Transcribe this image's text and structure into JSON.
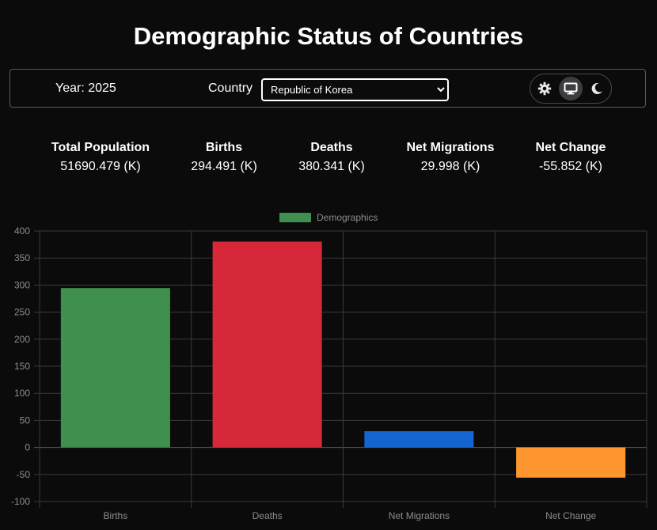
{
  "title": "Demographic Status of Countries",
  "controls": {
    "year_label": "Year: 2025",
    "country_label": "Country",
    "country_selected": "Republic of Korea",
    "theme_options": [
      "light-icon",
      "desktop-icon",
      "moon-icon"
    ],
    "theme_active": "desktop-icon"
  },
  "stats": [
    {
      "label": "Total Population",
      "value": "51690.479 (K)"
    },
    {
      "label": "Births",
      "value": "294.491 (K)"
    },
    {
      "label": "Deaths",
      "value": "380.341 (K)"
    },
    {
      "label": "Net Migrations",
      "value": "29.998 (K)"
    },
    {
      "label": "Net Change",
      "value": "-55.852 (K)"
    }
  ],
  "chart_data": {
    "type": "bar",
    "categories": [
      "Births",
      "Deaths",
      "Net Migrations",
      "Net Change"
    ],
    "series": [
      {
        "name": "Demographics",
        "values": [
          294.491,
          380.341,
          29.998,
          -55.852
        ],
        "colors": [
          "#3f8f4f",
          "#d62839",
          "#1565d0",
          "#fd962f"
        ]
      }
    ],
    "ylim": [
      -100,
      400
    ],
    "yticks": [
      400,
      350,
      300,
      250,
      200,
      150,
      100,
      50,
      0,
      -50,
      -100
    ],
    "grid": true,
    "legend_position": "top",
    "legend_color": "#3f8f4f"
  }
}
